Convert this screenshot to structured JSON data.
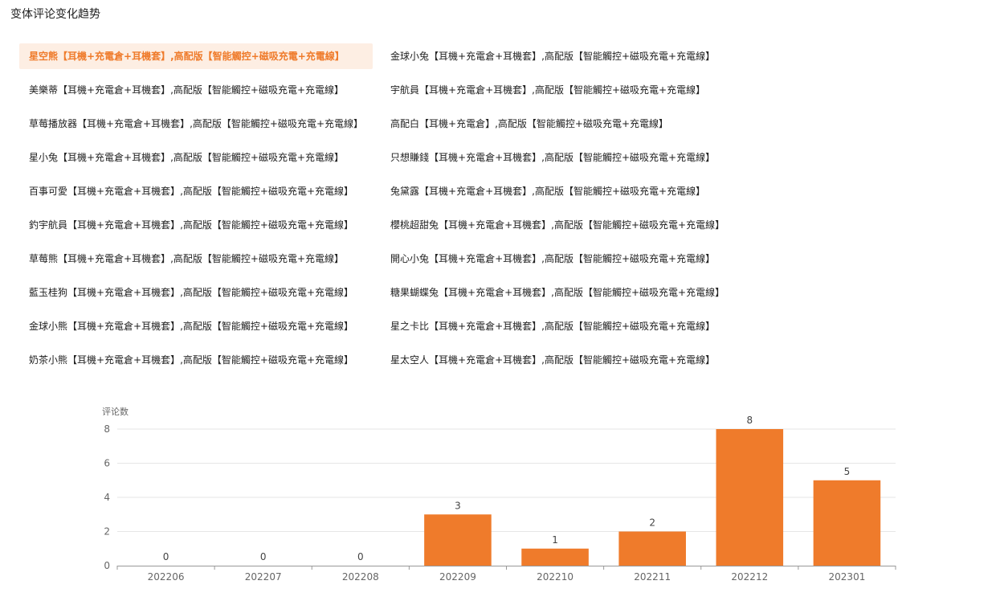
{
  "page": {
    "title": "变体评论变化趋势"
  },
  "variants": {
    "active_index": 0,
    "items": [
      "星空熊【耳機+充電倉+耳機套】,高配版【智能觸控+磁吸充電+充電線】",
      "金球小兔【耳機+充電倉+耳機套】,高配版【智能觸控+磁吸充電+充電線】",
      "美樂蒂【耳機+充電倉+耳機套】,高配版【智能觸控+磁吸充電+充電線】",
      "宇航員【耳機+充電倉+耳機套】,高配版【智能觸控+磁吸充電+充電線】",
      "草莓播放器【耳機+充電倉+耳機套】,高配版【智能觸控+磁吸充電+充電線】",
      "高配白【耳機+充電倉】,高配版【智能觸控+磁吸充電+充電線】",
      "星小兔【耳機+充電倉+耳機套】,高配版【智能觸控+磁吸充電+充電線】",
      "只想賺錢【耳機+充電倉+耳機套】,高配版【智能觸控+磁吸充電+充電線】",
      "百事可愛【耳機+充電倉+耳機套】,高配版【智能觸控+磁吸充電+充電線】",
      "兔黛露【耳機+充電倉+耳機套】,高配版【智能觸控+磁吸充電+充電線】",
      "釣宇航員【耳機+充電倉+耳機套】,高配版【智能觸控+磁吸充電+充電線】",
      "櫻桃超甜兔【耳機+充電倉+耳機套】,高配版【智能觸控+磁吸充電+充電線】",
      "草莓熊【耳機+充電倉+耳機套】,高配版【智能觸控+磁吸充電+充電線】",
      "開心小兔【耳機+充電倉+耳機套】,高配版【智能觸控+磁吸充電+充電線】",
      "藍玉桂狗【耳機+充電倉+耳機套】,高配版【智能觸控+磁吸充電+充電線】",
      "糖果蝴蝶兔【耳機+充電倉+耳機套】,高配版【智能觸控+磁吸充電+充電線】",
      "金球小熊【耳機+充電倉+耳機套】,高配版【智能觸控+磁吸充電+充電線】",
      "星之卡比【耳機+充電倉+耳機套】,高配版【智能觸控+磁吸充電+充電線】",
      "奶茶小熊【耳機+充電倉+耳機套】,高配版【智能觸控+磁吸充電+充電線】",
      "星太空人【耳機+充電倉+耳機套】,高配版【智能觸控+磁吸充電+充電線】"
    ]
  },
  "colors": {
    "accent": "#ef7b2b",
    "active_bg": "#fdeee3",
    "grid": "#e6e6e6",
    "axis": "#999999"
  },
  "chart_data": {
    "type": "bar",
    "title": "",
    "xlabel": "",
    "ylabel": "评论数",
    "categories": [
      "202206",
      "202207",
      "202208",
      "202209",
      "202210",
      "202211",
      "202212",
      "202301"
    ],
    "values": [
      0,
      0,
      0,
      3,
      1,
      2,
      8,
      5
    ],
    "ylim": [
      0,
      8
    ],
    "yticks": [
      0,
      2,
      4,
      6,
      8
    ],
    "grid": true,
    "data_labels": true
  }
}
